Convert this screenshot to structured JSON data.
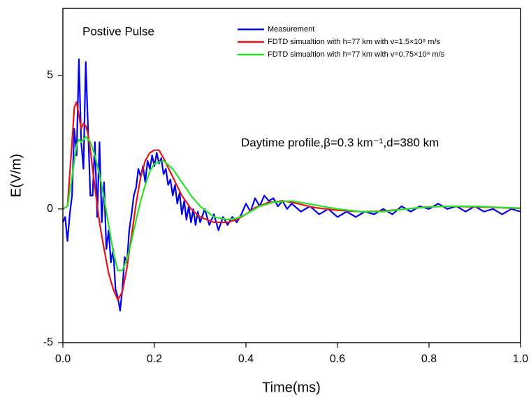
{
  "chart_data": {
    "type": "line",
    "annotations": [
      "Postive Pulse",
      "Daytime profile,β=0.3 km⁻¹,d=380 km"
    ],
    "xlabel": "Time(ms)",
    "ylabel": "E(V/m)",
    "xlim": [
      0,
      1
    ],
    "ylim": [
      -5,
      7.5
    ],
    "xticks": [
      {
        "value": 0,
        "label": "0.0"
      },
      0.2,
      0.4,
      0.6,
      0.8,
      {
        "value": 1,
        "label": "1.0"
      }
    ],
    "yticks": [
      -5,
      0,
      5
    ],
    "series": [
      {
        "name": "Measurement",
        "color": "#0000ee",
        "x": [
          0,
          0.005,
          0.01,
          0.015,
          0.02,
          0.025,
          0.03,
          0.035,
          0.04,
          0.045,
          0.05,
          0.055,
          0.06,
          0.065,
          0.07,
          0.075,
          0.08,
          0.085,
          0.09,
          0.095,
          0.1,
          0.105,
          0.11,
          0.115,
          0.12,
          0.125,
          0.13,
          0.135,
          0.14,
          0.145,
          0.15,
          0.155,
          0.16,
          0.165,
          0.17,
          0.175,
          0.18,
          0.185,
          0.19,
          0.195,
          0.2,
          0.205,
          0.21,
          0.215,
          0.22,
          0.225,
          0.23,
          0.235,
          0.24,
          0.245,
          0.25,
          0.255,
          0.26,
          0.265,
          0.27,
          0.275,
          0.28,
          0.285,
          0.29,
          0.295,
          0.3,
          0.31,
          0.32,
          0.33,
          0.34,
          0.35,
          0.36,
          0.37,
          0.38,
          0.39,
          0.4,
          0.41,
          0.42,
          0.43,
          0.44,
          0.45,
          0.46,
          0.47,
          0.48,
          0.49,
          0.5,
          0.52,
          0.54,
          0.56,
          0.58,
          0.6,
          0.62,
          0.64,
          0.66,
          0.68,
          0.7,
          0.72,
          0.74,
          0.76,
          0.78,
          0.8,
          0.82,
          0.84,
          0.86,
          0.88,
          0.9,
          0.92,
          0.94,
          0.96,
          0.98,
          1
        ],
        "values": [
          -0.5,
          -0.3,
          -1.2,
          -0.2,
          0.5,
          3.0,
          2.0,
          5.6,
          2.5,
          1.5,
          5.5,
          3.0,
          0.5,
          0.5,
          2.5,
          -0.3,
          2.5,
          -0.5,
          1.0,
          -1.5,
          -0.8,
          -2.0,
          -1.5,
          -3.0,
          -3.3,
          -3.8,
          -3.0,
          -1.8,
          -2.0,
          -0.8,
          -0.2,
          0.5,
          0.8,
          1.5,
          1.2,
          1.6,
          1.0,
          1.8,
          1.5,
          2.0,
          1.6,
          2.1,
          1.7,
          1.9,
          1.3,
          1.5,
          0.9,
          1.1,
          0.5,
          0.9,
          0.2,
          0.6,
          -0.2,
          0.3,
          -0.4,
          0.1,
          -0.5,
          0.0,
          -0.6,
          -0.1,
          -0.5,
          0.0,
          -0.6,
          -0.2,
          -0.8,
          -0.3,
          -0.6,
          -0.3,
          -0.5,
          -0.2,
          0.2,
          -0.1,
          0.4,
          0.1,
          0.5,
          0.3,
          0.4,
          0.1,
          0.3,
          0.0,
          0.2,
          -0.1,
          0.1,
          -0.2,
          0.0,
          -0.3,
          -0.1,
          -0.3,
          -0.1,
          -0.2,
          0.0,
          -0.2,
          0.1,
          -0.1,
          0.1,
          0.0,
          0.2,
          0.0,
          0.1,
          -0.1,
          0.1,
          -0.1,
          0.0,
          -0.2,
          0.0,
          -0.1
        ]
      },
      {
        "name": "FDTD simualtion with h=77 km with v=1.5×10⁸ m/s",
        "color": "#e8141a",
        "x": [
          0,
          0.01,
          0.02,
          0.025,
          0.03,
          0.035,
          0.04,
          0.045,
          0.05,
          0.055,
          0.06,
          0.07,
          0.08,
          0.09,
          0.1,
          0.11,
          0.12,
          0.13,
          0.14,
          0.15,
          0.16,
          0.17,
          0.18,
          0.19,
          0.2,
          0.21,
          0.22,
          0.24,
          0.26,
          0.28,
          0.3,
          0.33,
          0.36,
          0.38,
          0.4,
          0.42,
          0.45,
          0.48,
          0.5,
          0.55,
          0.6,
          0.65,
          0.7,
          0.75,
          0.8,
          0.85,
          0.9,
          0.95,
          1
        ],
        "values": [
          0,
          0.1,
          2.5,
          3.8,
          4.0,
          3.5,
          3.0,
          3.2,
          3.1,
          2.8,
          2.2,
          0.8,
          -0.5,
          -1.5,
          -2.4,
          -3.0,
          -3.4,
          -3.1,
          -2.2,
          -1.0,
          0.2,
          1.2,
          1.8,
          2.1,
          2.2,
          2.2,
          1.9,
          1.2,
          0.5,
          0.0,
          -0.3,
          -0.5,
          -0.5,
          -0.4,
          -0.2,
          0.05,
          0.25,
          0.3,
          0.25,
          0.05,
          -0.05,
          -0.1,
          -0.08,
          0.0,
          0.08,
          0.1,
          0.08,
          0.05,
          0.02
        ]
      },
      {
        "name": "FDTD simualtion with h=77 km with v=0.75×10⁸ m/s",
        "color": "#22e622",
        "x": [
          0,
          0.01,
          0.02,
          0.03,
          0.035,
          0.04,
          0.05,
          0.06,
          0.07,
          0.08,
          0.09,
          0.1,
          0.11,
          0.12,
          0.13,
          0.14,
          0.15,
          0.16,
          0.17,
          0.18,
          0.19,
          0.2,
          0.22,
          0.24,
          0.26,
          0.28,
          0.3,
          0.33,
          0.36,
          0.38,
          0.4,
          0.43,
          0.46,
          0.5,
          0.55,
          0.6,
          0.65,
          0.7,
          0.75,
          0.8,
          0.85,
          0.9,
          0.95,
          1
        ],
        "values": [
          0,
          0.1,
          1.2,
          2.4,
          2.6,
          2.5,
          2.7,
          2.5,
          2.0,
          1.3,
          0.4,
          -0.6,
          -1.6,
          -2.3,
          -2.3,
          -1.9,
          -1.2,
          -0.4,
          0.3,
          0.9,
          1.4,
          1.7,
          1.8,
          1.5,
          1.0,
          0.5,
          0.1,
          -0.3,
          -0.4,
          -0.35,
          -0.2,
          0.1,
          0.25,
          0.3,
          0.15,
          0.0,
          -0.1,
          -0.1,
          0.0,
          0.08,
          0.1,
          0.1,
          0.06,
          0.03
        ]
      }
    ]
  }
}
